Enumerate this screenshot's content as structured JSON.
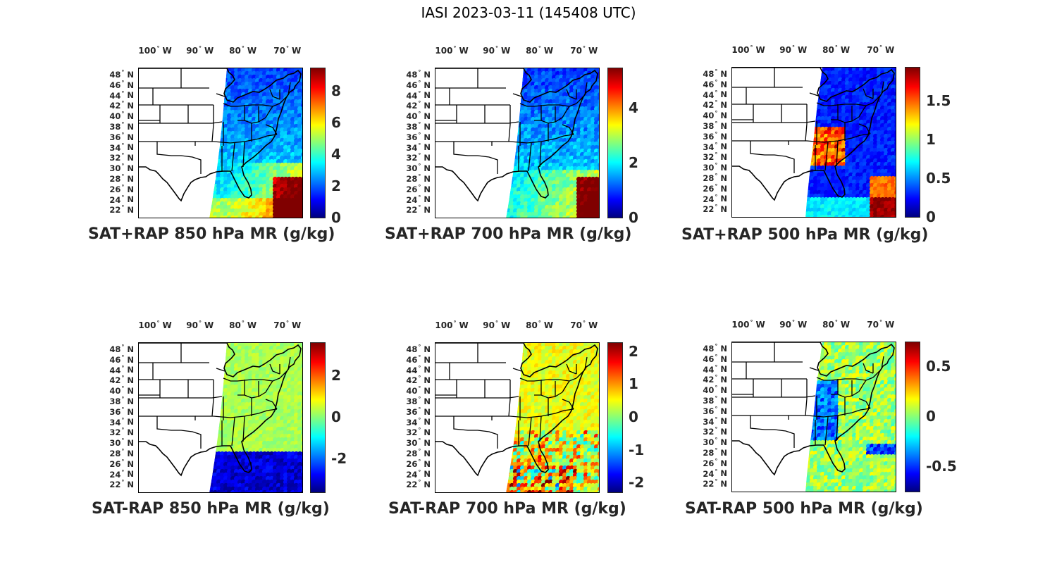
{
  "title": "IASI 2023-03-11 (145408 UTC)",
  "lon_ticks": [
    {
      "deg": "100",
      "hem": "W"
    },
    {
      "deg": "90",
      "hem": "W"
    },
    {
      "deg": "80",
      "hem": "W"
    },
    {
      "deg": "70",
      "hem": "W"
    }
  ],
  "lat_ticks": [
    {
      "deg": "48",
      "hem": "N"
    },
    {
      "deg": "46",
      "hem": "N"
    },
    {
      "deg": "44",
      "hem": "N"
    },
    {
      "deg": "42",
      "hem": "N"
    },
    {
      "deg": "40",
      "hem": "N"
    },
    {
      "deg": "38",
      "hem": "N"
    },
    {
      "deg": "36",
      "hem": "N"
    },
    {
      "deg": "34",
      "hem": "N"
    },
    {
      "deg": "32",
      "hem": "N"
    },
    {
      "deg": "30",
      "hem": "N"
    },
    {
      "deg": "28",
      "hem": "N"
    },
    {
      "deg": "26",
      "hem": "N"
    },
    {
      "deg": "24",
      "hem": "N"
    },
    {
      "deg": "22",
      "hem": "N"
    }
  ],
  "colormap": "jet",
  "panels": [
    {
      "label": "SAT+RAP 850 hPa MR (g/kg)",
      "cmin": 0,
      "cmax": 9.5,
      "ticks": [
        "0",
        "2",
        "4",
        "6",
        "8"
      ],
      "tick_values": [
        0,
        2,
        4,
        6,
        8
      ]
    },
    {
      "label": "SAT+RAP 700 hPa MR (g/kg)",
      "cmin": 0,
      "cmax": 5.5,
      "ticks": [
        "0",
        "2",
        "4"
      ],
      "tick_values": [
        0,
        2,
        4
      ]
    },
    {
      "label": "SAT+RAP 500 hPa MR (g/kg)",
      "cmin": 0,
      "cmax": 1.95,
      "ticks": [
        "0",
        "0.5",
        "1",
        "1.5"
      ],
      "tick_values": [
        0,
        0.5,
        1,
        1.5
      ]
    },
    {
      "label": "SAT-RAP 850 hPa MR (g/kg)",
      "cmin": -3.6,
      "cmax": 3.6,
      "ticks": [
        "-2",
        "0",
        "2"
      ],
      "tick_values": [
        -2,
        0,
        2
      ]
    },
    {
      "label": "SAT-RAP 700 hPa MR (g/kg)",
      "cmin": -2.3,
      "cmax": 2.3,
      "ticks": [
        "-2",
        "-1",
        "0",
        "1",
        "2"
      ],
      "tick_values": [
        -2,
        -1,
        0,
        1,
        2
      ]
    },
    {
      "label": "SAT-RAP 500 hPa MR (g/kg)",
      "cmin": -0.75,
      "cmax": 0.75,
      "ticks": [
        "-0.5",
        "0",
        "0.5"
      ],
      "tick_values": [
        -0.5,
        0,
        0.5
      ]
    }
  ]
}
